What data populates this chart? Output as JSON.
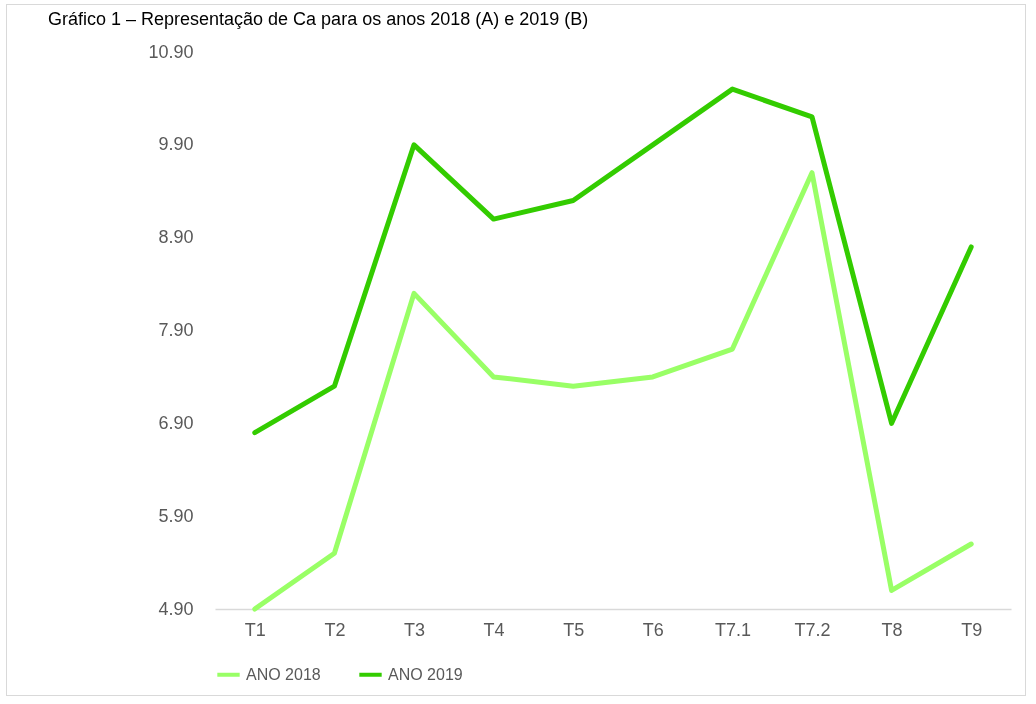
{
  "chart_data": {
    "type": "line",
    "title": "Gráfico 1 – Representação de Ca para os anos 2018 (A) e 2019 (B)",
    "categories": [
      "T1",
      "T2",
      "T3",
      "T4",
      "T5",
      "T6",
      "T7.1",
      "T7.2",
      "T8",
      "T9"
    ],
    "series": [
      {
        "name": "ANO 2018",
        "color": "#99ff66",
        "values": [
          4.9,
          5.5,
          8.3,
          7.4,
          7.3,
          7.4,
          7.7,
          9.6,
          5.1,
          5.6
        ]
      },
      {
        "name": "ANO 2019",
        "color": "#33cc00",
        "values": [
          6.8,
          7.3,
          9.9,
          9.1,
          9.3,
          9.9,
          10.5,
          10.2,
          6.9,
          8.8
        ]
      }
    ],
    "ylim": [
      4.9,
      10.9
    ],
    "yticks": [
      {
        "value": 4.9,
        "label": "4.90"
      },
      {
        "value": 5.9,
        "label": "5.90"
      },
      {
        "value": 6.9,
        "label": "6.90"
      },
      {
        "value": 7.9,
        "label": "7.90"
      },
      {
        "value": 8.9,
        "label": "8.90"
      },
      {
        "value": 9.9,
        "label": "9.90"
      },
      {
        "value": 10.9,
        "label": "10.90"
      }
    ],
    "grid": false,
    "legend": "bottom",
    "marker": "none",
    "line_style": "solid"
  }
}
